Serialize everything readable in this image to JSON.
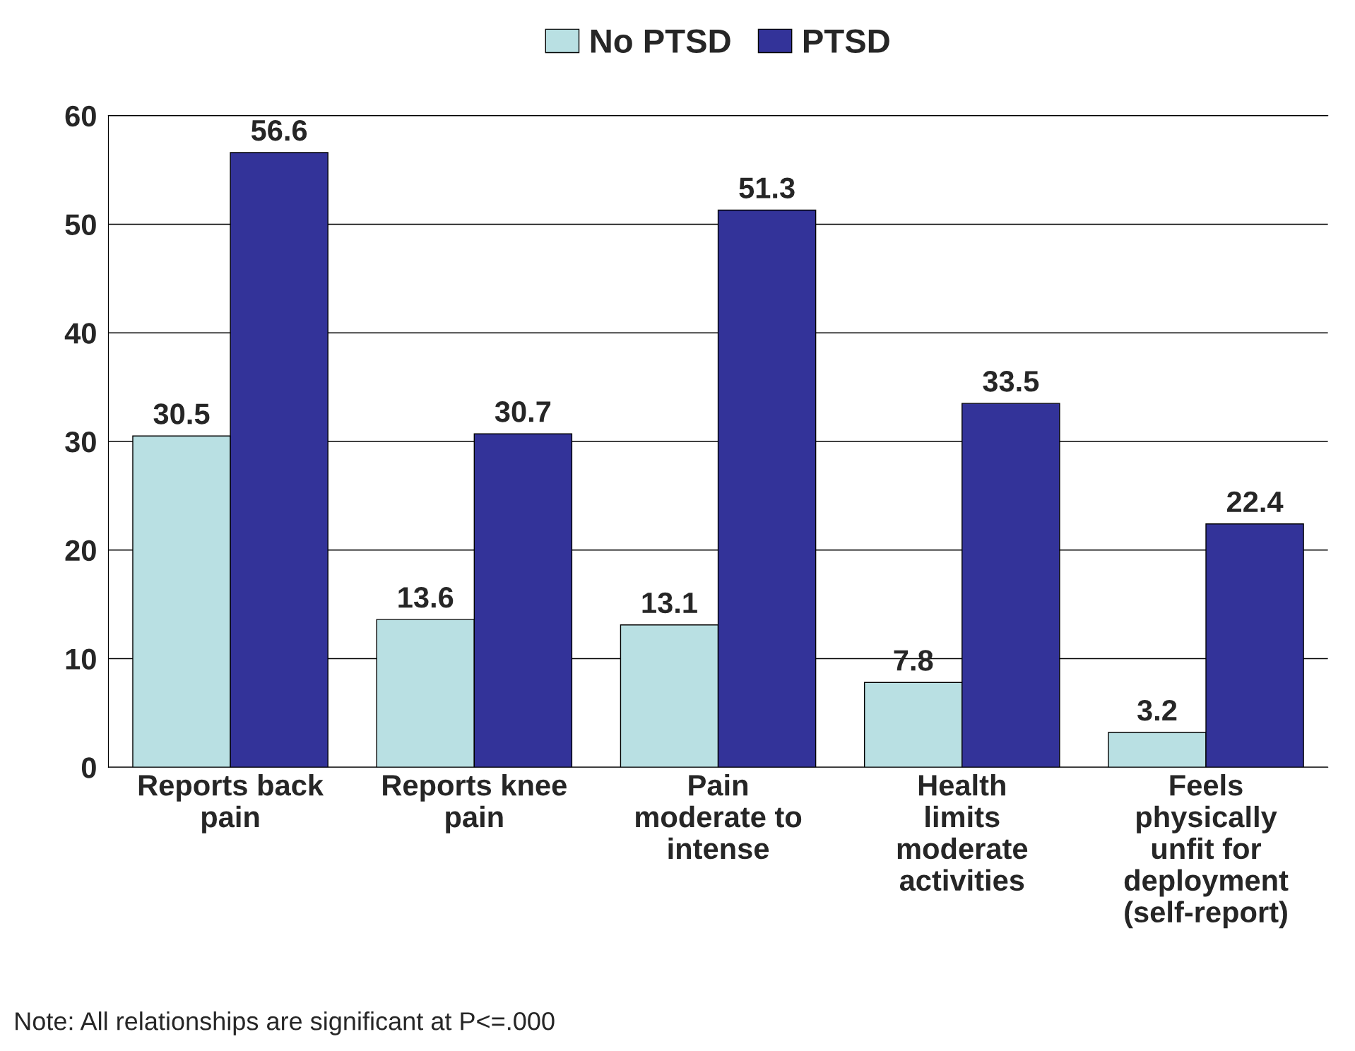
{
  "chart_data": {
    "type": "bar",
    "categories": [
      "Reports back pain",
      "Reports knee pain",
      "Pain moderate to intense",
      "Health limits moderate activities",
      "Feels physically unfit for deployment (self-report)"
    ],
    "series": [
      {
        "name": "No PTSD",
        "color": "#b9e0e3",
        "values": [
          30.5,
          13.6,
          13.1,
          7.8,
          3.2
        ]
      },
      {
        "name": "PTSD",
        "color": "#333399",
        "values": [
          56.6,
          30.7,
          51.3,
          33.5,
          22.4
        ]
      }
    ],
    "ylim": [
      0,
      60
    ],
    "yticks": [
      0,
      10,
      20,
      30,
      40,
      50,
      60
    ],
    "grid": "y",
    "legend": "top",
    "data_labels": true,
    "annotations": [
      "Note: All relationships are significant at P<=.000"
    ]
  }
}
